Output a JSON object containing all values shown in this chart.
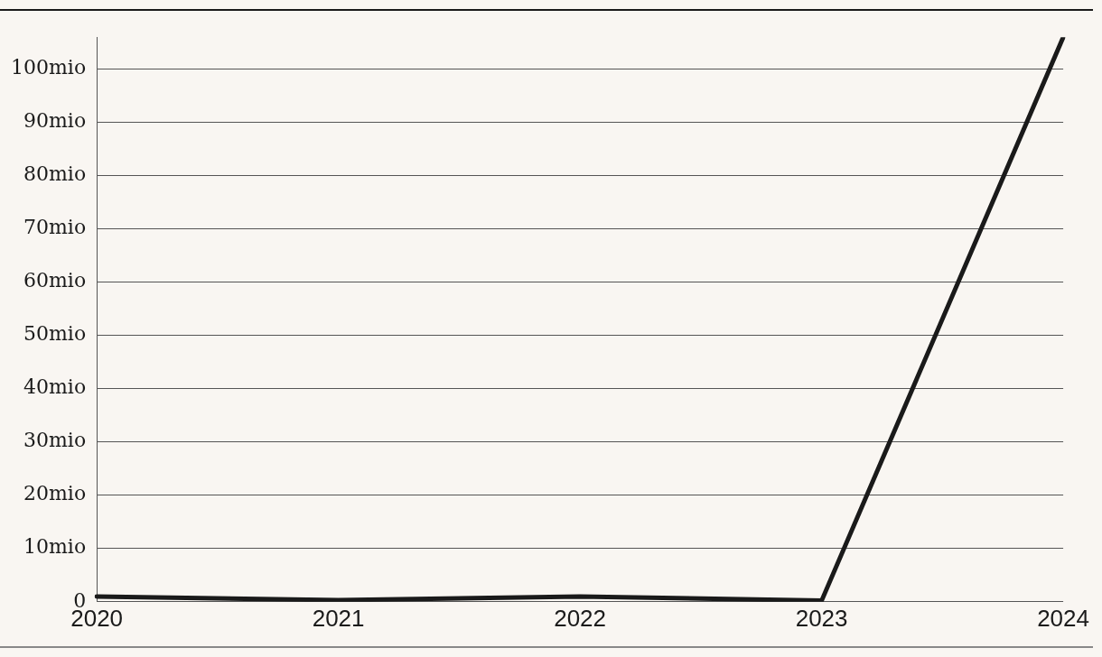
{
  "chart_data": {
    "type": "line",
    "categories": [
      "2020",
      "2021",
      "2022",
      "2023",
      "2024"
    ],
    "series": [
      {
        "color": "#1a1a1a",
        "values": [
          1,
          0.3,
          1,
          0.2,
          106
        ]
      }
    ],
    "yticks": [
      0,
      {
        "value": 10,
        "label": "10mio"
      },
      {
        "value": 20,
        "label": "20mio"
      },
      {
        "value": 30,
        "label": "30mio"
      },
      {
        "value": 40,
        "label": "40mio"
      },
      {
        "value": 50,
        "label": "50mio"
      },
      {
        "value": 60,
        "label": "60mio"
      },
      {
        "value": 70,
        "label": "70mio"
      },
      {
        "value": 80,
        "label": "80mio"
      },
      {
        "value": 90,
        "label": "90mio"
      },
      {
        "value": 100,
        "label": "100mio"
      }
    ],
    "ylim": [
      0,
      106
    ],
    "grid": "y",
    "legend": false,
    "marker": "none",
    "line_style": "solid"
  }
}
